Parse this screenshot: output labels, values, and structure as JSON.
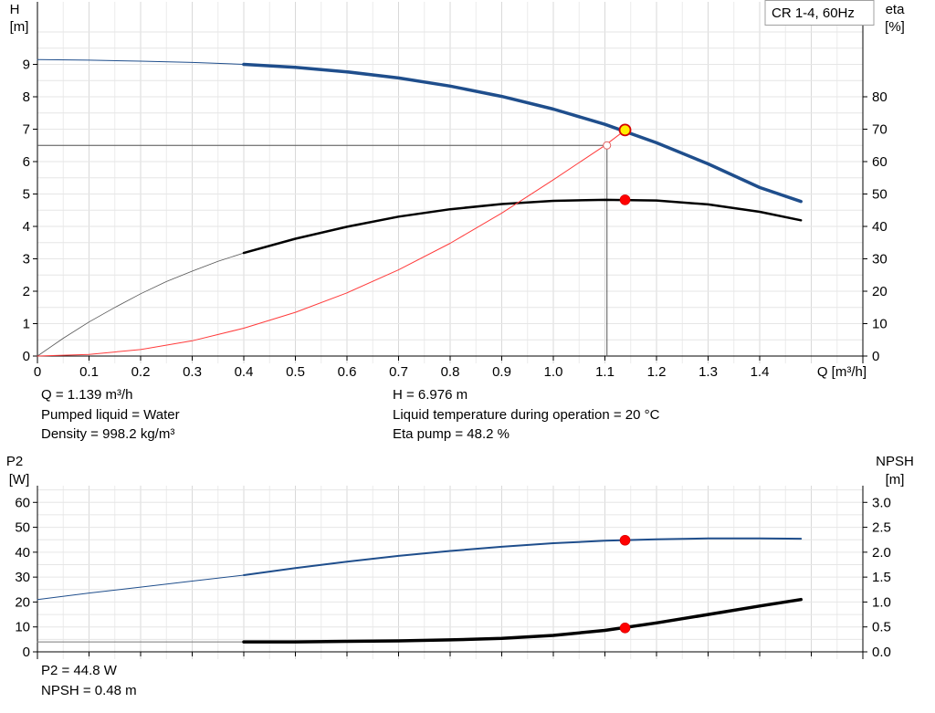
{
  "chart_data": [
    {
      "type": "line",
      "title": "CR 1-4, 60Hz",
      "x": {
        "label": "Q [m³/h]",
        "lim": [
          0,
          1.6
        ],
        "ticks": [
          0,
          0.1,
          0.2,
          0.3,
          0.4,
          0.5,
          0.6,
          0.7,
          0.8,
          0.9,
          1.0,
          1.1,
          1.2,
          1.3,
          1.4
        ],
        "tick_labels": [
          "0",
          "0.1",
          "0.2",
          "0.3",
          "0.4",
          "0.5",
          "0.6",
          "0.7",
          "0.8",
          "0.9",
          "1.0",
          "1.1",
          "1.2",
          "1.3",
          "1.4"
        ]
      },
      "y_left": {
        "label_line1": "H",
        "label_line2": "[m]",
        "lim": [
          0,
          10
        ],
        "ticks": [
          0,
          1,
          2,
          3,
          4,
          5,
          6,
          7,
          8,
          9
        ],
        "tick_labels": [
          "0",
          "1",
          "2",
          "3",
          "4",
          "5",
          "6",
          "7",
          "8",
          "9"
        ]
      },
      "y_right": {
        "label_line1": "eta",
        "label_line2": "[%]",
        "lim": [
          0,
          100
        ],
        "ticks": [
          0,
          10,
          20,
          30,
          40,
          50,
          60,
          70,
          80
        ],
        "tick_labels": [
          "0",
          "10",
          "20",
          "30",
          "40",
          "50",
          "60",
          "70",
          "80"
        ]
      },
      "grid": true,
      "series": [
        {
          "axis": "left",
          "color": "#1f4e8c",
          "role": "head",
          "x": [
            0,
            0.1,
            0.2,
            0.3,
            0.4
          ],
          "y": [
            9.15,
            9.13,
            9.1,
            9.06,
            9.0
          ]
        },
        {
          "axis": "left",
          "color": "#1f4e8c",
          "role": "head-bold",
          "x": [
            0.4,
            0.5,
            0.6,
            0.7,
            0.8,
            0.9,
            1.0,
            1.1,
            1.2,
            1.3,
            1.4,
            1.48
          ],
          "y": [
            9.0,
            8.91,
            8.77,
            8.58,
            8.33,
            8.01,
            7.62,
            7.15,
            6.58,
            5.93,
            5.2,
            4.77
          ]
        },
        {
          "axis": "right",
          "color": "#555555",
          "role": "eta",
          "x": [
            0,
            0.05,
            0.1,
            0.15,
            0.2,
            0.25,
            0.3,
            0.35,
            0.4
          ],
          "y": [
            0,
            5.5,
            10.5,
            15.0,
            19.2,
            23.0,
            26.2,
            29.2,
            31.8
          ]
        },
        {
          "axis": "right",
          "color": "#000000",
          "role": "eta-bold",
          "x": [
            0.4,
            0.5,
            0.6,
            0.7,
            0.8,
            0.9,
            1.0,
            1.1,
            1.2,
            1.3,
            1.4,
            1.48
          ],
          "y": [
            31.8,
            36.2,
            39.9,
            43.0,
            45.3,
            46.9,
            47.9,
            48.2,
            48.0,
            46.8,
            44.5,
            41.9
          ]
        },
        {
          "axis": "left",
          "color": "#ff3b3b",
          "role": "system",
          "x": [
            0,
            0.1,
            0.2,
            0.3,
            0.4,
            0.5,
            0.6,
            0.7,
            0.8,
            0.9,
            1.0,
            1.1,
            1.14
          ],
          "y": [
            0,
            0.05,
            0.2,
            0.47,
            0.86,
            1.35,
            1.95,
            2.66,
            3.48,
            4.41,
            5.44,
            6.5,
            6.98
          ]
        }
      ],
      "reference_lines": {
        "q": 1.104,
        "h": 6.5
      },
      "markers": [
        {
          "x": 1.139,
          "y": 6.976,
          "axis": "left",
          "style": "duty",
          "color": "#ffee00",
          "stroke": "#d40000"
        },
        {
          "x": 1.139,
          "y": 48.2,
          "axis": "right",
          "style": "dot",
          "color": "#ff0000"
        },
        {
          "x": 1.104,
          "y": 6.5,
          "axis": "left",
          "style": "ring",
          "color": "#e06060"
        }
      ]
    },
    {
      "type": "line",
      "x": {
        "lim": [
          0,
          1.6
        ],
        "ticks": [
          0,
          0.1,
          0.2,
          0.3,
          0.4,
          0.5,
          0.6,
          0.7,
          0.8,
          0.9,
          1.0,
          1.1,
          1.2,
          1.3,
          1.4,
          1.5,
          1.6
        ]
      },
      "y_left": {
        "label_line1": "P2",
        "label_line2": "[W]",
        "lim": [
          0,
          70
        ],
        "ticks": [
          0,
          10,
          20,
          30,
          40,
          50,
          60
        ],
        "tick_labels": [
          "0",
          "10",
          "20",
          "30",
          "40",
          "50",
          "60"
        ]
      },
      "y_right": {
        "label_line1": "NPSH",
        "label_line2": "[m]",
        "lim": [
          0,
          3.5
        ],
        "ticks": [
          0,
          0.5,
          1.0,
          1.5,
          2.0,
          2.5,
          3.0
        ],
        "tick_labels": [
          "0.0",
          "0.5",
          "1.0",
          "1.5",
          "2.0",
          "2.5",
          "3.0"
        ]
      },
      "grid": true,
      "series": [
        {
          "axis": "left",
          "color": "#1f4e8c",
          "role": "p2",
          "x": [
            0,
            0.1,
            0.2,
            0.3,
            0.4
          ],
          "y": [
            21.0,
            23.6,
            26.0,
            28.4,
            30.8
          ]
        },
        {
          "axis": "left",
          "color": "#1f4e8c",
          "role": "p2-bold",
          "x": [
            0.4,
            0.5,
            0.6,
            0.7,
            0.8,
            0.9,
            1.0,
            1.1,
            1.2,
            1.3,
            1.4,
            1.48
          ],
          "y": [
            30.8,
            33.6,
            36.2,
            38.5,
            40.5,
            42.2,
            43.6,
            44.6,
            45.2,
            45.5,
            45.5,
            45.4
          ]
        },
        {
          "axis": "right",
          "color": "#777777",
          "role": "npsh",
          "x": [
            0,
            0.4
          ],
          "y": [
            0.2,
            0.2
          ]
        },
        {
          "axis": "right",
          "color": "#000000",
          "role": "npsh-bold",
          "x": [
            0.4,
            0.5,
            0.6,
            0.7,
            0.8,
            0.9,
            1.0,
            1.1,
            1.2,
            1.3,
            1.4,
            1.48
          ],
          "y": [
            0.2,
            0.2,
            0.21,
            0.22,
            0.24,
            0.27,
            0.33,
            0.43,
            0.58,
            0.75,
            0.92,
            1.05
          ]
        }
      ],
      "markers": [
        {
          "x": 1.139,
          "y": 44.8,
          "axis": "left",
          "style": "dot",
          "color": "#ff0000"
        },
        {
          "x": 1.139,
          "y": 0.48,
          "axis": "right",
          "style": "dot",
          "color": "#ff0000"
        }
      ]
    }
  ],
  "info_top": {
    "q": "Q = 1.139 m³/h",
    "liquid": "Pumped liquid = Water",
    "density": "Density = 998.2 kg/m³",
    "h": "H = 6.976 m",
    "temperature": "Liquid temperature during operation = 20 °C",
    "eta": "Eta pump = 48.2 %"
  },
  "info_bottom": {
    "p2": "P2 = 44.8 W",
    "npsh": "NPSH = 0.48 m"
  }
}
